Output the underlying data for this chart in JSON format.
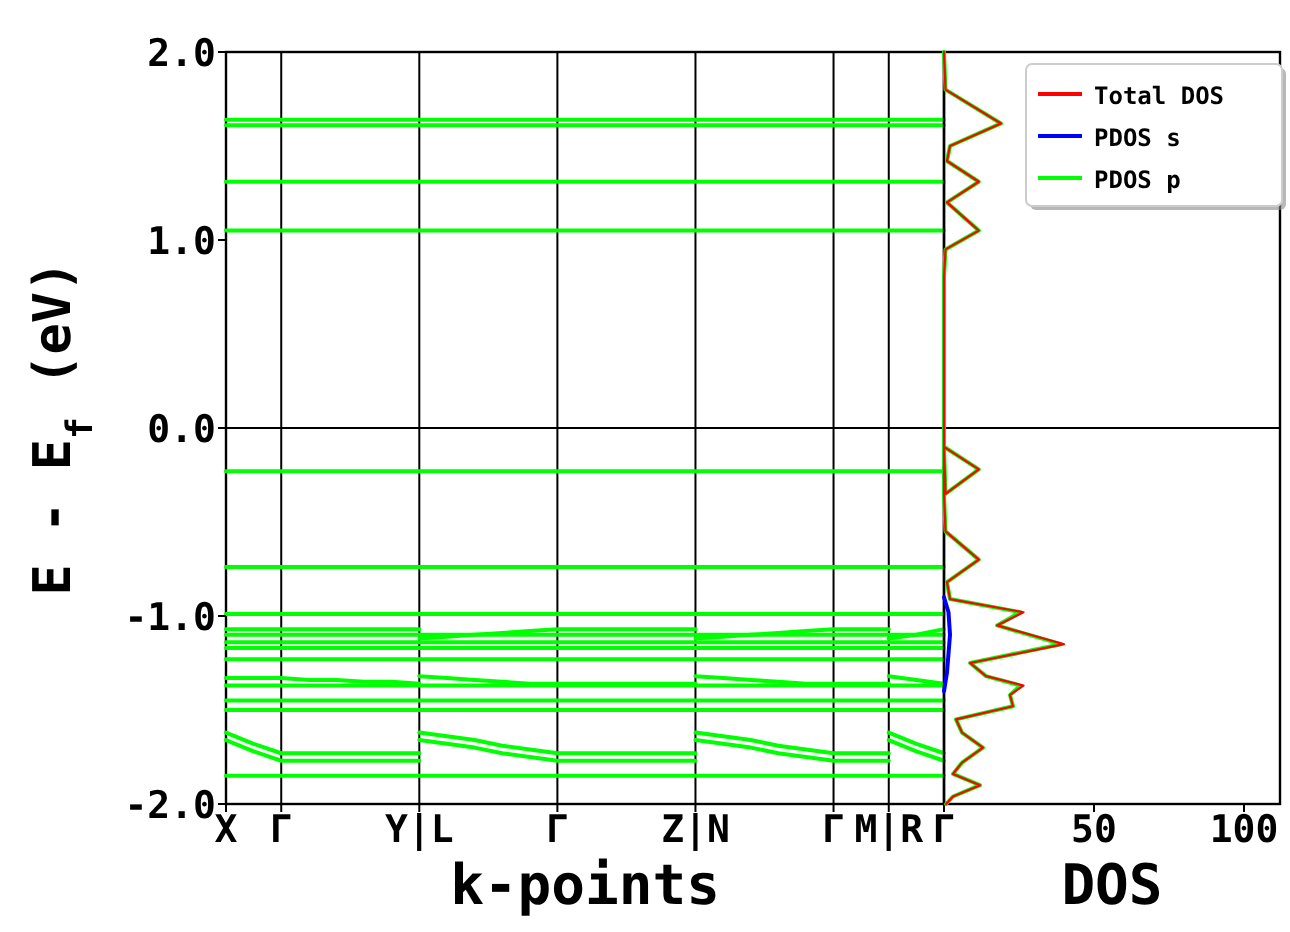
{
  "chart_data": [
    {
      "type": "line",
      "xlabel": "k-points",
      "ylabel": "E - E$_{f}$ (eV)",
      "ylim": [
        -2,
        2
      ],
      "categories": [
        "X",
        null,
        "Γ",
        null,
        null,
        null,
        null,
        "Y|L",
        null,
        null,
        null,
        null,
        "Γ",
        null,
        null,
        null,
        null,
        "Z|N",
        null,
        null,
        null,
        null,
        "Γ",
        null,
        "M|R",
        null,
        "Γ"
      ],
      "yticks": [
        {
          "value": -2,
          "label": "-2.0"
        },
        {
          "value": -1,
          "label": "-1.0"
        },
        {
          "value": 0,
          "label": "0.0"
        },
        {
          "value": 1,
          "label": "1.0"
        },
        {
          "value": 2,
          "label": "2.0"
        }
      ],
      "grid": "x",
      "ref_lines": [
        {
          "axis": "y",
          "value": 0,
          "color": "#000000"
        }
      ],
      "series": [
        {
          "color": "#00ff00",
          "values": [
            1.64,
            1.64,
            1.64,
            1.64,
            1.64,
            1.64,
            1.64,
            1.64,
            1.64,
            1.64,
            1.64,
            1.64,
            1.64,
            1.64,
            1.64,
            1.64,
            1.64,
            1.64,
            1.64,
            1.64,
            1.64,
            1.64,
            1.64,
            1.64,
            1.64,
            1.64,
            1.64
          ]
        },
        {
          "color": "#00ff00",
          "values": [
            1.61,
            1.61,
            1.61,
            1.61,
            1.61,
            1.61,
            1.61,
            1.61,
            1.61,
            1.61,
            1.61,
            1.61,
            1.61,
            1.61,
            1.61,
            1.61,
            1.61,
            1.61,
            1.61,
            1.61,
            1.61,
            1.61,
            1.61,
            1.61,
            1.61,
            1.61,
            1.61
          ]
        },
        {
          "color": "#00ff00",
          "values": [
            1.31,
            1.31,
            1.31,
            1.31,
            1.31,
            1.31,
            1.31,
            1.31,
            1.31,
            1.31,
            1.31,
            1.31,
            1.31,
            1.31,
            1.31,
            1.31,
            1.31,
            1.31,
            1.31,
            1.31,
            1.31,
            1.31,
            1.31,
            1.31,
            1.31,
            1.31,
            1.31
          ]
        },
        {
          "color": "#00ff00",
          "values": [
            1.05,
            1.05,
            1.05,
            1.05,
            1.05,
            1.05,
            1.05,
            1.05,
            1.05,
            1.05,
            1.05,
            1.05,
            1.05,
            1.05,
            1.05,
            1.05,
            1.05,
            1.05,
            1.05,
            1.05,
            1.05,
            1.05,
            1.05,
            1.05,
            1.05,
            1.05,
            1.05
          ]
        },
        {
          "color": "#00ff00",
          "values": [
            -0.23,
            -0.23,
            -0.23,
            -0.23,
            -0.23,
            -0.23,
            -0.23,
            -0.23,
            -0.23,
            -0.23,
            -0.23,
            -0.23,
            -0.23,
            -0.23,
            -0.23,
            -0.23,
            -0.23,
            -0.23,
            -0.23,
            -0.23,
            -0.23,
            -0.23,
            -0.23,
            -0.23,
            -0.23,
            -0.23,
            -0.23
          ]
        },
        {
          "color": "#00ff00",
          "values": [
            -0.74,
            -0.74,
            -0.74,
            -0.74,
            -0.74,
            -0.74,
            -0.74,
            -0.74,
            -0.74,
            -0.74,
            -0.74,
            -0.74,
            -0.74,
            -0.74,
            -0.74,
            -0.74,
            -0.74,
            -0.74,
            -0.74,
            -0.74,
            -0.74,
            -0.74,
            -0.74,
            -0.74,
            -0.74,
            -0.74,
            -0.74
          ]
        },
        {
          "color": "#00ff00",
          "values": [
            -0.99,
            -0.99,
            -0.99,
            -0.99,
            -0.99,
            -0.99,
            -0.99,
            -0.99,
            -0.99,
            -0.99,
            -0.99,
            -0.99,
            -0.99,
            -0.99,
            -0.99,
            -0.99,
            -0.99,
            -0.99,
            -0.99,
            -0.99,
            -0.99,
            -0.99,
            -0.99,
            -0.99,
            -0.99,
            -0.99,
            -0.99
          ]
        },
        {
          "color": "#00ff00",
          "values": [
            -1.07,
            -1.07,
            -1.07,
            -1.07,
            -1.07,
            -1.07,
            -1.07,
            -1.07,
            null,
            null,
            null,
            null,
            null,
            null,
            null,
            null,
            null,
            -1.12,
            -1.11,
            -1.1,
            -1.09,
            -1.08,
            -1.07,
            -1.07,
            -1.07,
            null,
            null
          ]
        },
        {
          "color": "#00ff00",
          "values": [
            null,
            null,
            null,
            null,
            null,
            null,
            null,
            -1.12,
            -1.11,
            -1.1,
            -1.09,
            -1.08,
            -1.07,
            -1.07,
            -1.07,
            -1.07,
            -1.07,
            -1.07,
            null,
            null,
            null,
            null,
            null,
            null,
            -1.12,
            -1.1,
            -1.07
          ]
        },
        {
          "color": "#00ff00",
          "values": [
            -1.1,
            -1.1,
            -1.1,
            -1.1,
            -1.1,
            -1.1,
            -1.1,
            -1.1,
            -1.1,
            -1.1,
            -1.1,
            -1.1,
            -1.1,
            -1.1,
            -1.1,
            -1.1,
            -1.1,
            -1.1,
            -1.1,
            -1.1,
            -1.1,
            -1.1,
            -1.1,
            -1.1,
            -1.1,
            -1.1,
            -1.1
          ]
        },
        {
          "color": "#00ff00",
          "values": [
            -1.14,
            -1.14,
            -1.14,
            -1.14,
            -1.14,
            -1.14,
            -1.14,
            -1.14,
            -1.14,
            -1.14,
            -1.14,
            -1.14,
            -1.14,
            -1.14,
            -1.14,
            -1.14,
            -1.14,
            -1.14,
            -1.14,
            -1.14,
            -1.14,
            -1.14,
            -1.14,
            -1.14,
            -1.14,
            -1.14,
            -1.14
          ]
        },
        {
          "color": "#00ff00",
          "values": [
            -1.17,
            -1.17,
            -1.17,
            -1.17,
            -1.17,
            -1.17,
            -1.17,
            -1.17,
            -1.17,
            -1.17,
            -1.17,
            -1.17,
            -1.17,
            -1.17,
            -1.17,
            -1.17,
            -1.17,
            -1.17,
            -1.17,
            -1.17,
            -1.17,
            -1.17,
            -1.17,
            -1.17,
            -1.17,
            -1.17,
            -1.17
          ]
        },
        {
          "color": "#00ff00",
          "values": [
            -1.23,
            -1.23,
            -1.23,
            -1.23,
            -1.23,
            -1.23,
            -1.23,
            -1.23,
            -1.23,
            -1.23,
            -1.23,
            -1.23,
            -1.23,
            -1.23,
            -1.23,
            -1.23,
            -1.23,
            -1.23,
            -1.23,
            -1.23,
            -1.23,
            -1.23,
            -1.23,
            -1.23,
            -1.23,
            -1.23,
            -1.23
          ]
        },
        {
          "color": "#00ff00",
          "values": [
            -1.33,
            -1.33,
            -1.33,
            -1.34,
            -1.34,
            -1.35,
            -1.35,
            -1.36,
            null,
            null,
            null,
            null,
            null,
            null,
            null,
            null,
            null,
            -1.32,
            -1.33,
            -1.34,
            -1.35,
            -1.36,
            -1.36,
            -1.36,
            -1.36,
            null,
            null
          ]
        },
        {
          "color": "#00ff00",
          "values": [
            null,
            null,
            null,
            null,
            null,
            null,
            null,
            -1.32,
            -1.33,
            -1.34,
            -1.35,
            -1.36,
            -1.36,
            -1.36,
            -1.36,
            -1.36,
            -1.36,
            -1.36,
            null,
            null,
            null,
            null,
            null,
            null,
            -1.32,
            -1.34,
            -1.36
          ]
        },
        {
          "color": "#00ff00",
          "values": [
            -1.37,
            -1.37,
            -1.37,
            -1.37,
            -1.37,
            -1.37,
            -1.37,
            -1.37,
            -1.37,
            -1.37,
            -1.37,
            -1.37,
            -1.37,
            -1.37,
            -1.37,
            -1.37,
            -1.37,
            -1.37,
            -1.37,
            -1.37,
            -1.37,
            -1.37,
            -1.37,
            -1.37,
            -1.37,
            -1.37,
            -1.37
          ]
        },
        {
          "color": "#00ff00",
          "values": [
            -1.45,
            -1.45,
            -1.45,
            -1.45,
            -1.45,
            -1.45,
            -1.45,
            -1.45,
            -1.45,
            -1.45,
            -1.45,
            -1.45,
            -1.45,
            -1.45,
            -1.45,
            -1.45,
            -1.45,
            -1.45,
            -1.45,
            -1.45,
            -1.45,
            -1.45,
            -1.45,
            -1.45,
            -1.45,
            -1.45,
            -1.45
          ]
        },
        {
          "color": "#00ff00",
          "values": [
            -1.5,
            -1.5,
            -1.5,
            -1.5,
            -1.5,
            -1.5,
            -1.5,
            -1.5,
            -1.5,
            -1.5,
            -1.5,
            -1.5,
            -1.5,
            -1.5,
            -1.5,
            -1.5,
            -1.5,
            -1.5,
            -1.5,
            -1.5,
            -1.5,
            -1.5,
            -1.5,
            -1.5,
            -1.5,
            -1.5,
            -1.5
          ]
        },
        {
          "color": "#00ff00",
          "values": [
            -1.62,
            -1.68,
            -1.73,
            -1.73,
            -1.73,
            -1.73,
            -1.73,
            -1.73,
            null,
            null,
            null,
            null,
            null,
            null,
            null,
            null,
            null,
            -1.62,
            -1.64,
            -1.66,
            -1.69,
            -1.71,
            -1.73,
            -1.73,
            -1.73,
            null,
            null
          ]
        },
        {
          "color": "#00ff00",
          "values": [
            null,
            null,
            null,
            null,
            null,
            null,
            null,
            -1.62,
            -1.64,
            -1.66,
            -1.69,
            -1.71,
            -1.73,
            -1.73,
            -1.73,
            -1.73,
            -1.73,
            -1.73,
            null,
            null,
            null,
            null,
            null,
            null,
            -1.62,
            -1.68,
            -1.73
          ]
        },
        {
          "color": "#00ff00",
          "values": [
            -1.66,
            -1.72,
            -1.77,
            -1.77,
            -1.77,
            -1.77,
            -1.77,
            -1.77,
            null,
            null,
            null,
            null,
            null,
            null,
            null,
            null,
            null,
            -1.66,
            -1.68,
            -1.7,
            -1.73,
            -1.75,
            -1.77,
            -1.77,
            -1.77,
            null,
            null
          ]
        },
        {
          "color": "#00ff00",
          "values": [
            null,
            null,
            null,
            null,
            null,
            null,
            null,
            -1.66,
            -1.68,
            -1.7,
            -1.73,
            -1.75,
            -1.77,
            -1.77,
            -1.77,
            -1.77,
            -1.77,
            -1.77,
            null,
            null,
            null,
            null,
            null,
            null,
            -1.66,
            -1.72,
            -1.77
          ]
        },
        {
          "color": "#00ff00",
          "values": [
            -1.85,
            -1.85,
            -1.85,
            -1.85,
            -1.85,
            -1.85,
            -1.85,
            -1.85,
            -1.85,
            -1.85,
            -1.85,
            -1.85,
            -1.85,
            -1.85,
            -1.85,
            -1.85,
            -1.85,
            -1.85,
            -1.85,
            -1.85,
            -1.85,
            -1.85,
            -1.85,
            -1.85,
            -1.85,
            -1.85,
            -1.85
          ]
        }
      ]
    },
    {
      "type": "line",
      "xlabel": "DOS",
      "xlim": [
        0,
        112
      ],
      "ylim": [
        -2,
        2
      ],
      "xticks": [
        50,
        100
      ],
      "tick_labels": "x",
      "legend": "top right",
      "ref_lines": [
        {
          "axis": "y",
          "value": 0,
          "color": "#000000"
        }
      ],
      "series": [
        {
          "name": "Total DOS",
          "color": "#ff0000",
          "x": [
            0.7,
            3,
            12,
            3,
            6,
            13,
            6,
            4,
            23,
            22,
            26.5,
            14,
            8.7,
            40,
            17.7,
            26.5,
            2,
            1,
            11.6,
            0.5,
            0,
            0,
            11.6,
            0.5,
            0,
            0,
            0.5,
            11.6,
            1,
            11.6,
            1,
            2,
            19,
            0.5,
            0
          ],
          "values": [
            -2,
            -1.96,
            -1.9,
            -1.84,
            -1.78,
            -1.7,
            -1.62,
            -1.55,
            -1.48,
            -1.42,
            -1.37,
            -1.32,
            -1.25,
            -1.15,
            -1.05,
            -0.98,
            -0.91,
            -0.82,
            -0.7,
            -0.55,
            -0.35,
            -0.1,
            -0.22,
            -0.35,
            -0.1,
            0.8,
            0.95,
            1.05,
            1.2,
            1.31,
            1.42,
            1.5,
            1.62,
            1.8,
            2
          ]
        },
        {
          "name": "PDOS s",
          "color": "#0000ff",
          "x": [
            0,
            1.5,
            2,
            1.5,
            1,
            0
          ],
          "values": [
            -0.9,
            -0.98,
            -1.1,
            -1.2,
            -1.3,
            -1.4
          ]
        },
        {
          "name": "PDOS p",
          "color": "#00ff00",
          "x": [
            0.7,
            3,
            12,
            3,
            6,
            13,
            6,
            4,
            23,
            22,
            25.5,
            14,
            8.7,
            39,
            17.7,
            25.5,
            2,
            1,
            11.6,
            0.5,
            0,
            0,
            11.6,
            0.5,
            0,
            0,
            0.5,
            11.6,
            1,
            11.6,
            1,
            2,
            19,
            0.5,
            0
          ],
          "values": [
            -2,
            -1.96,
            -1.9,
            -1.84,
            -1.78,
            -1.7,
            -1.62,
            -1.55,
            -1.48,
            -1.42,
            -1.37,
            -1.32,
            -1.25,
            -1.15,
            -1.05,
            -0.98,
            -0.91,
            -0.82,
            -0.7,
            -0.55,
            -0.35,
            -0.1,
            -0.22,
            -0.35,
            -0.1,
            0.8,
            0.95,
            1.05,
            1.2,
            1.31,
            1.42,
            1.5,
            1.62,
            1.8,
            2
          ]
        }
      ]
    }
  ]
}
